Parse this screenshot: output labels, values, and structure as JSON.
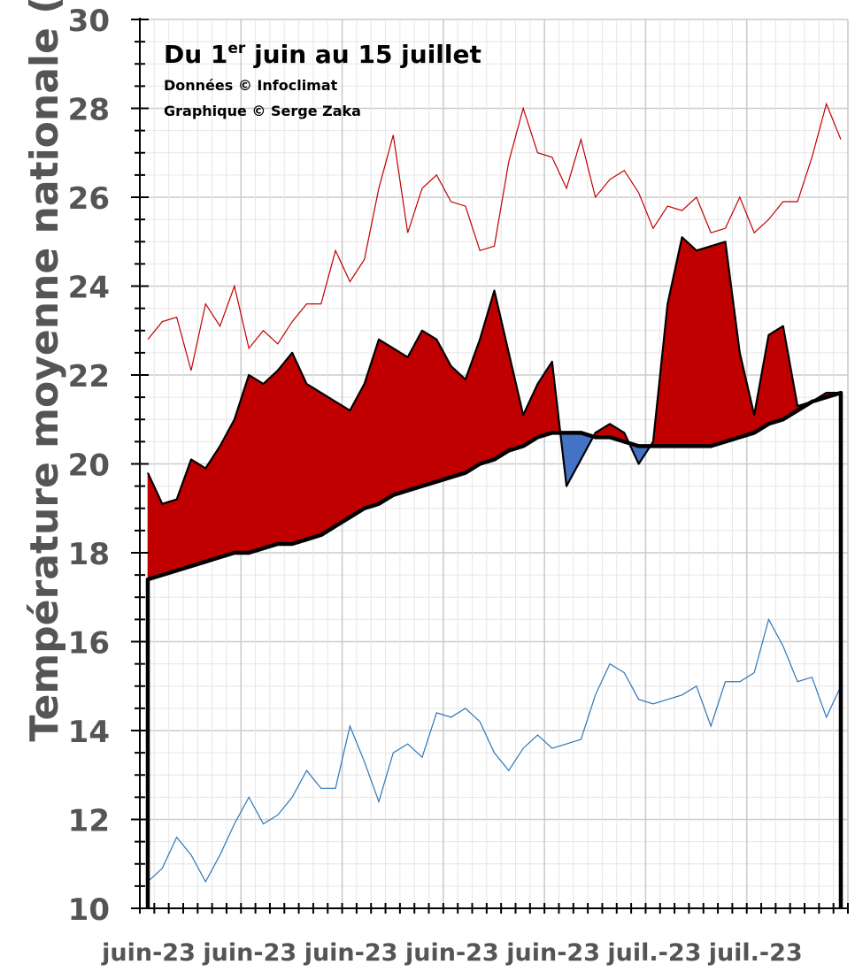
{
  "chart_data": {
    "type": "area",
    "title": "Du 1er juin au 15 juillet",
    "title_main": "Du 1",
    "title_sup": "er",
    "title_rest": " juin au 15 juillet",
    "credit_data": "Données © Infoclimat",
    "credit_chart": "Graphique © Serge Zaka",
    "ylabel": "Température moyenne nationale (°C)",
    "xlabel": "",
    "ylim": [
      10,
      30
    ],
    "yticks": [
      10,
      12,
      14,
      16,
      18,
      20,
      22,
      24,
      26,
      28,
      30
    ],
    "x_tick_labels": [
      "juin-23",
      "juin-23",
      "juin-23",
      "juin-23",
      "juin-23",
      "juil.-23",
      "juil.-23"
    ],
    "x": [
      1,
      2,
      3,
      4,
      5,
      6,
      7,
      8,
      9,
      10,
      11,
      12,
      13,
      14,
      15,
      16,
      17,
      18,
      19,
      20,
      21,
      22,
      23,
      24,
      25,
      26,
      27,
      28,
      29,
      30,
      31,
      32,
      33,
      34,
      35,
      36,
      37,
      38,
      39,
      40,
      41,
      42,
      43,
      44,
      45,
      46,
      47,
      48,
      49
    ],
    "grid": true,
    "colors": {
      "above_normal": "#c00000",
      "below_normal": "#4472c4",
      "normal_line": "#000000",
      "max_line": "#c00000",
      "min_line": "#2e75b6",
      "axis_text": "#555555",
      "grid": "#d9d9d9"
    },
    "series": [
      {
        "key": "mean",
        "values": [
          19.8,
          19.1,
          19.2,
          20.1,
          19.9,
          20.4,
          21.0,
          22.0,
          21.8,
          22.1,
          22.5,
          21.8,
          21.6,
          21.4,
          21.2,
          21.8,
          22.8,
          22.6,
          22.4,
          23.0,
          22.8,
          22.2,
          21.9,
          22.8,
          23.9,
          22.5,
          21.1,
          21.8,
          22.3,
          19.5,
          20.1,
          20.7,
          20.9,
          20.7,
          20.0,
          20.5,
          23.6,
          25.1,
          24.8,
          24.9,
          25.0,
          22.5,
          21.1,
          22.9,
          23.1,
          21.3,
          21.4,
          21.6,
          21.6
        ]
      },
      {
        "key": "normal",
        "values": [
          17.4,
          17.5,
          17.6,
          17.7,
          17.8,
          17.9,
          18.0,
          18.0,
          18.1,
          18.2,
          18.2,
          18.3,
          18.4,
          18.6,
          18.8,
          19.0,
          19.1,
          19.3,
          19.4,
          19.5,
          19.6,
          19.7,
          19.8,
          20.0,
          20.1,
          20.3,
          20.4,
          20.6,
          20.7,
          20.7,
          20.7,
          20.6,
          20.6,
          20.5,
          20.4,
          20.4,
          20.4,
          20.4,
          20.4,
          20.4,
          20.5,
          20.6,
          20.7,
          20.9,
          21.0,
          21.2,
          21.4,
          21.5,
          21.6
        ]
      },
      {
        "key": "max",
        "values": [
          22.8,
          23.2,
          23.3,
          22.1,
          23.6,
          23.1,
          24.0,
          22.6,
          23.0,
          22.7,
          23.2,
          23.6,
          23.6,
          24.8,
          24.1,
          24.6,
          26.2,
          27.4,
          25.2,
          26.2,
          26.5,
          25.9,
          25.8,
          24.8,
          24.9,
          26.8,
          28.0,
          27.0,
          26.9,
          26.2,
          27.3,
          26.0,
          26.4,
          26.6,
          26.1,
          25.3,
          25.8,
          25.7,
          26.0,
          25.2,
          25.3,
          26.0,
          25.2,
          25.5,
          25.9,
          25.9,
          26.9,
          28.1,
          27.3
        ]
      },
      {
        "key": "min",
        "values": [
          10.6,
          10.9,
          11.6,
          11.2,
          10.6,
          11.2,
          11.9,
          12.5,
          11.9,
          12.1,
          12.5,
          13.1,
          12.7,
          12.7,
          14.1,
          13.3,
          12.4,
          13.5,
          13.7,
          13.4,
          14.4,
          14.3,
          14.5,
          14.2,
          13.5,
          13.1,
          13.6,
          13.9,
          13.6,
          13.7,
          13.8,
          14.8,
          15.5,
          15.3,
          14.7,
          14.6,
          14.7,
          14.8,
          15.0,
          14.1,
          15.1,
          15.1,
          15.3,
          16.5,
          15.9,
          15.1,
          15.2,
          14.3,
          15.0
        ]
      }
    ]
  }
}
